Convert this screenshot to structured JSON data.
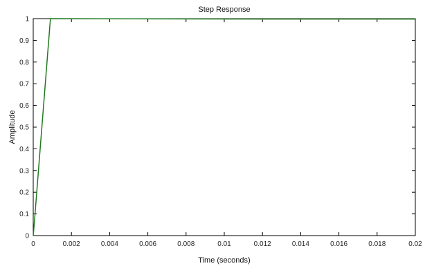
{
  "chart_data": {
    "type": "line",
    "title": "Step Response",
    "xlabel": "Time (seconds)",
    "ylabel": "Amplitude",
    "xlim": [
      0,
      0.02
    ],
    "ylim": [
      0,
      1
    ],
    "x_ticks": [
      "0",
      "0.002",
      "0.004",
      "0.006",
      "0.008",
      "0.01",
      "0.012",
      "0.014",
      "0.016",
      "0.018",
      "0.02"
    ],
    "y_ticks": [
      "0",
      "0.1",
      "0.2",
      "0.3",
      "0.4",
      "0.5",
      "0.6",
      "0.7",
      "0.8",
      "0.9",
      "1"
    ],
    "grid": false,
    "series": [
      {
        "color": "#1f7a1f",
        "x": [
          0,
          5e-05,
          0.0009,
          0.0123,
          0.02
        ],
        "y": [
          0,
          0.05,
          1.0,
          0.998,
          0.998
        ]
      }
    ]
  }
}
